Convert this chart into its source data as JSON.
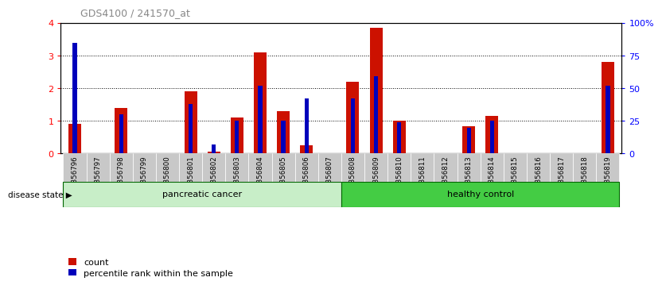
{
  "title": "GDS4100 / 241570_at",
  "samples": [
    "GSM356796",
    "GSM356797",
    "GSM356798",
    "GSM356799",
    "GSM356800",
    "GSM356801",
    "GSM356802",
    "GSM356803",
    "GSM356804",
    "GSM356805",
    "GSM356806",
    "GSM356807",
    "GSM356808",
    "GSM356809",
    "GSM356810",
    "GSM356811",
    "GSM356812",
    "GSM356813",
    "GSM356814",
    "GSM356815",
    "GSM356816",
    "GSM356817",
    "GSM356818",
    "GSM356819"
  ],
  "count_values": [
    0.9,
    0.0,
    1.4,
    0.0,
    0.0,
    1.9,
    0.05,
    1.1,
    3.1,
    1.3,
    0.25,
    0.0,
    2.2,
    3.85,
    1.0,
    0.0,
    0.0,
    0.85,
    1.15,
    0.0,
    0.0,
    0.0,
    0.0,
    2.8
  ],
  "percentile_pct": [
    85,
    0,
    30,
    0,
    0,
    38,
    7,
    25,
    52,
    25,
    42,
    0,
    42,
    59,
    24,
    0,
    0,
    20,
    25,
    0,
    0,
    0,
    0,
    52
  ],
  "bar_color": "#CC1100",
  "percentile_color": "#0000BB",
  "bar_width": 0.55,
  "percentile_bar_width": 0.18,
  "ylim_left": [
    0,
    4
  ],
  "yticks_left": [
    0,
    1,
    2,
    3,
    4
  ],
  "ylim_right": [
    0,
    100
  ],
  "yticks_right": [
    0,
    25,
    50,
    75,
    100
  ],
  "yticklabels_right": [
    "0",
    "25",
    "50",
    "75",
    "100%"
  ],
  "pancreatic_n": 12,
  "healthy_n": 12,
  "pancreatic_color": "#C8EEC8",
  "healthy_color": "#44CC44",
  "group_border_color": "#006600",
  "tick_label_bg": "#C8C8C8",
  "legend_count": "count",
  "legend_pct": "percentile rank within the sample",
  "disease_state_text": "disease state"
}
